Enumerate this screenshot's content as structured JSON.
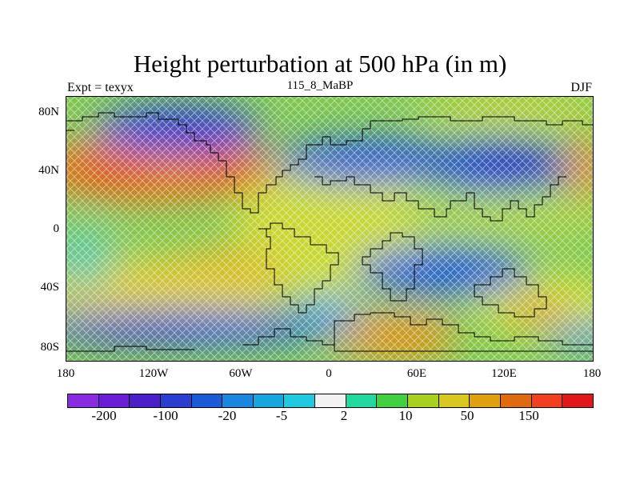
{
  "title": "Height perturbation at 500 hPa (in m)",
  "subtitle_left": "Expt = texyx",
  "subtitle_center": "115_8_MaBP",
  "subtitle_right": "DJF",
  "lat_labels": [
    "80N",
    "40N",
    "0",
    "40S",
    "80S"
  ],
  "lon_labels": [
    "180",
    "120W",
    "60W",
    "0",
    "60E",
    "120E",
    "180"
  ],
  "colorbar": {
    "colors": [
      "#8a2be2",
      "#6a1fd6",
      "#4a1fc8",
      "#2a3fd0",
      "#1a5cd8",
      "#1a86e0",
      "#18a6e0",
      "#20c8e0",
      "#f2f2f2",
      "#20d8a0",
      "#40d040",
      "#a8d020",
      "#d8c820",
      "#e0a010",
      "#e06a10",
      "#f04020",
      "#e01818"
    ],
    "labels": [
      "-200",
      "-100",
      "-20",
      "-5",
      "2",
      "10",
      "50",
      "150"
    ]
  },
  "chart_data": {
    "type": "heatmap",
    "title": "Height perturbation at 500 hPa (in m)",
    "subtitle": "115_8_MaBP",
    "experiment": "Expt = texyx",
    "season": "DJF",
    "x_range": [
      -180,
      180
    ],
    "y_range": [
      -90,
      90
    ],
    "x_ticks": [
      "180",
      "120W",
      "60W",
      "0",
      "60E",
      "120E",
      "180"
    ],
    "y_ticks": [
      "80N",
      "40N",
      "0",
      "40S",
      "80S"
    ],
    "levels": [
      "-200",
      "-100",
      "-20",
      "-5",
      "2",
      "10",
      "50",
      "150"
    ],
    "features": [
      {
        "type": "negative",
        "lon": -110,
        "lat": 72,
        "level": -150
      },
      {
        "type": "negative",
        "lon": 30,
        "lat": 45,
        "level": -150
      },
      {
        "type": "negative",
        "lon": 120,
        "lat": 40,
        "level": -200
      },
      {
        "type": "positive",
        "lon": -130,
        "lat": 42,
        "level": 150
      },
      {
        "type": "positive",
        "lon": 175,
        "lat": 42,
        "level": 100
      },
      {
        "type": "positive",
        "lon": 60,
        "lat": -65,
        "level": 100
      },
      {
        "type": "positive",
        "lon": -80,
        "lat": -35,
        "level": 50
      },
      {
        "type": "negative",
        "lon": 100,
        "lat": -35,
        "level": -100
      },
      {
        "type": "negative",
        "lon": -110,
        "lat": -68,
        "level": -150
      }
    ]
  }
}
